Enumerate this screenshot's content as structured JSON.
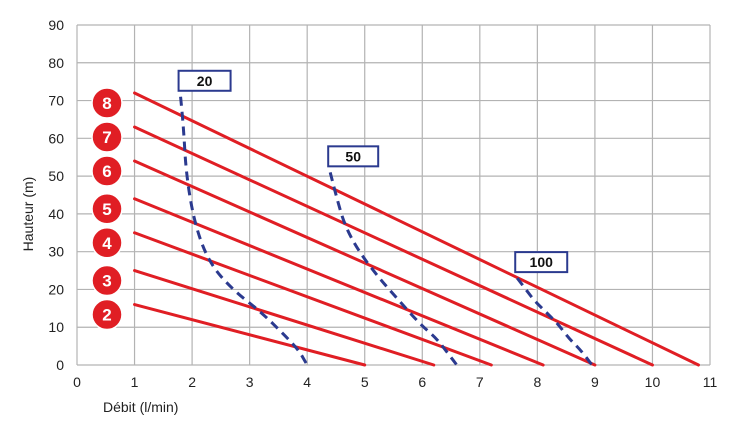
{
  "chart_data": {
    "type": "line",
    "xlabel": "Débit (l/min)",
    "ylabel": "Hauteur (m)",
    "xlim": [
      0,
      11
    ],
    "ylim": [
      0,
      90
    ],
    "x_ticks": [
      "0",
      "1",
      "2",
      "3",
      "4",
      "5",
      "6",
      "7",
      "8",
      "9",
      "10",
      "11"
    ],
    "y_ticks": [
      "0",
      "10",
      "20",
      "30",
      "40",
      "50",
      "60",
      "70",
      "80",
      "90"
    ],
    "grid": true,
    "colors": {
      "series": "#e01e24",
      "badge": "#e01e24",
      "dashed": "#2b3a8f",
      "grid": "#b3b3b3"
    },
    "series": [
      {
        "badge": "8",
        "x": [
          1,
          10.8
        ],
        "y": [
          72,
          0
        ]
      },
      {
        "badge": "7",
        "x": [
          1,
          10.0
        ],
        "y": [
          63,
          0
        ]
      },
      {
        "badge": "6",
        "x": [
          1,
          9.0
        ],
        "y": [
          54,
          0
        ]
      },
      {
        "badge": "5",
        "x": [
          1,
          8.1
        ],
        "y": [
          44,
          0
        ]
      },
      {
        "badge": "4",
        "x": [
          1,
          7.2
        ],
        "y": [
          35,
          0
        ]
      },
      {
        "badge": "3",
        "x": [
          1,
          6.2
        ],
        "y": [
          25,
          0
        ]
      },
      {
        "badge": "2",
        "x": [
          1,
          5.0
        ],
        "y": [
          16,
          0
        ]
      }
    ],
    "curves": [
      {
        "label": "20",
        "x": [
          1.8,
          1.85,
          1.9,
          2.05,
          2.3,
          2.7,
          3.2,
          3.6,
          3.85,
          4.0
        ],
        "y": [
          71,
          63,
          50,
          37,
          27,
          20,
          14,
          8,
          4,
          0
        ]
      },
      {
        "label": "50",
        "x": [
          4.4,
          4.5,
          4.65,
          4.9,
          5.25,
          5.6,
          5.95,
          6.25,
          6.45,
          6.6
        ],
        "y": [
          51,
          45,
          37,
          30,
          23,
          17,
          11,
          7,
          3,
          0
        ]
      },
      {
        "label": "100",
        "x": [
          7.65,
          7.8,
          7.95,
          8.15,
          8.35,
          8.55,
          8.75,
          8.95
        ],
        "y": [
          23,
          20,
          17,
          14,
          11,
          7,
          4,
          0
        ]
      }
    ]
  }
}
